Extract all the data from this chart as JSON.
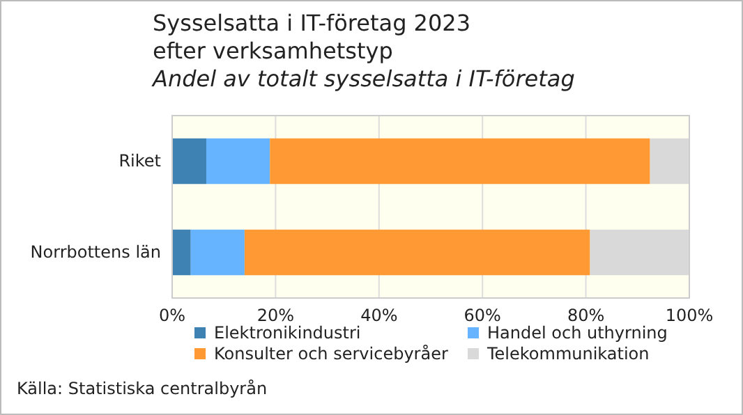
{
  "chart_data": {
    "type": "bar",
    "orientation": "horizontal",
    "stacked": true,
    "title": "Sysselsatta i IT-företag 2023 efter verksamhetstyp",
    "subtitle": "Andel av totalt sysselsatta i IT-företag",
    "categories": [
      "Riket",
      "Norrbottens län"
    ],
    "series": [
      {
        "name": "Elektronikindustri",
        "color": "#3d82b3",
        "values": [
          6.6,
          3.6
        ]
      },
      {
        "name": "Handel och uthyrning",
        "color": "#66b3ff",
        "values": [
          12.3,
          10.4
        ]
      },
      {
        "name": "Konsulter och servicebyråer",
        "color": "#ff9933",
        "values": [
          73.5,
          66.8
        ]
      },
      {
        "name": "Telekommunikation",
        "color": "#d9d9d9",
        "values": [
          7.6,
          19.2
        ]
      }
    ],
    "xlim": [
      0,
      100
    ],
    "xticks": [
      {
        "value": 0,
        "label": "0%"
      },
      {
        "value": 20,
        "label": "20%"
      },
      {
        "value": 40,
        "label": "40%"
      },
      {
        "value": 60,
        "label": "60%"
      },
      {
        "value": 80,
        "label": "80%"
      },
      {
        "value": 100,
        "label": "100%"
      }
    ],
    "grid": "x",
    "legend": "bottom",
    "annotations": [
      "Källa: Statistiska centralbyrån"
    ]
  }
}
